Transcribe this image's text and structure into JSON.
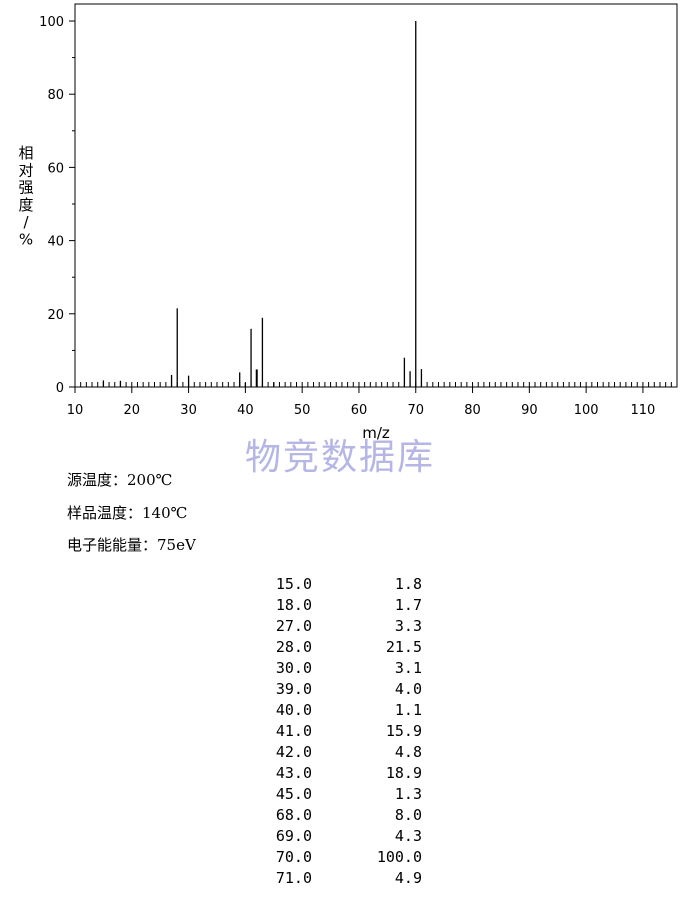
{
  "chart_data": {
    "type": "bar",
    "xlabel": "m/z",
    "ylabel": "相对强度/%",
    "xlim": [
      10,
      116
    ],
    "ylim": [
      0,
      100
    ],
    "xticks": [
      "10",
      "20",
      "30",
      "40",
      "50",
      "60",
      "70",
      "80",
      "90",
      "100",
      "110"
    ],
    "yticks": [
      "0",
      "20",
      "40",
      "60",
      "80",
      "100"
    ],
    "x": [
      15,
      18,
      27,
      28,
      30,
      39,
      40,
      41,
      42,
      43,
      45,
      68,
      69,
      70,
      71
    ],
    "values": [
      1.8,
      1.7,
      3.3,
      21.5,
      3.1,
      4.0,
      1.1,
      15.9,
      4.8,
      18.9,
      1.3,
      8.0,
      4.3,
      100.0,
      4.9
    ]
  },
  "watermark": "物竞数据库",
  "conditions": {
    "source_temp": "源温度：200℃",
    "sample_temp": "样品温度：140℃",
    "electron_energy": "电子能能量：75eV"
  },
  "peak_table": [
    {
      "mz": "15.0",
      "abundance": "1.8"
    },
    {
      "mz": "18.0",
      "abundance": "1.7"
    },
    {
      "mz": "27.0",
      "abundance": "3.3"
    },
    {
      "mz": "28.0",
      "abundance": "21.5"
    },
    {
      "mz": "30.0",
      "abundance": "3.1"
    },
    {
      "mz": "39.0",
      "abundance": "4.0"
    },
    {
      "mz": "40.0",
      "abundance": "1.1"
    },
    {
      "mz": "41.0",
      "abundance": "15.9"
    },
    {
      "mz": "42.0",
      "abundance": "4.8"
    },
    {
      "mz": "43.0",
      "abundance": "18.9"
    },
    {
      "mz": "45.0",
      "abundance": "1.3"
    },
    {
      "mz": "68.0",
      "abundance": "8.0"
    },
    {
      "mz": "69.0",
      "abundance": "4.3"
    },
    {
      "mz": "70.0",
      "abundance": "100.0"
    },
    {
      "mz": "71.0",
      "abundance": "4.9"
    }
  ]
}
